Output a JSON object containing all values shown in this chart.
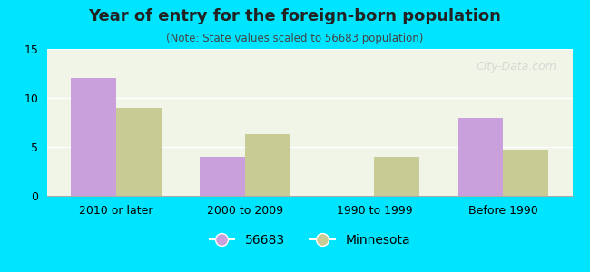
{
  "title": "Year of entry for the foreign-born population",
  "subtitle": "(Note: State values scaled to 56683 population)",
  "categories": [
    "2010 or later",
    "2000 to 2009",
    "1990 to 1999",
    "Before 1990"
  ],
  "values_56683": [
    12,
    4,
    0,
    8
  ],
  "values_minnesota": [
    9,
    6.3,
    4,
    4.7
  ],
  "bar_color_56683": "#c9a0dc",
  "bar_color_minnesota": "#c8cc94",
  "background_outer": "#00e5ff",
  "background_inner": "#f0f5e8",
  "ylim": [
    0,
    15
  ],
  "yticks": [
    0,
    5,
    10,
    15
  ],
  "bar_width": 0.35,
  "legend_label_56683": "56683",
  "legend_label_minnesota": "Minnesota",
  "watermark": "City-Data.com"
}
